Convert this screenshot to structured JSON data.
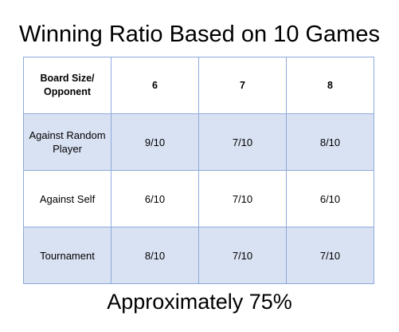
{
  "title": "Winning Ratio Based on 10 Games",
  "table": {
    "corner_header": "Board Size/ Opponent",
    "columns": [
      "6",
      "7",
      "8"
    ],
    "rows": [
      {
        "label": "Against Random Player",
        "values": [
          "9/10",
          "7/10",
          "8/10"
        ],
        "shaded": true
      },
      {
        "label": "Against Self",
        "values": [
          "6/10",
          "7/10",
          "6/10"
        ],
        "shaded": false
      },
      {
        "label": "Tournament",
        "values": [
          "8/10",
          "7/10",
          "7/10"
        ],
        "shaded": true
      }
    ]
  },
  "footer": "Approximately 75%",
  "colors": {
    "border": "#8faadc",
    "shaded_row": "#d9e2f3"
  }
}
